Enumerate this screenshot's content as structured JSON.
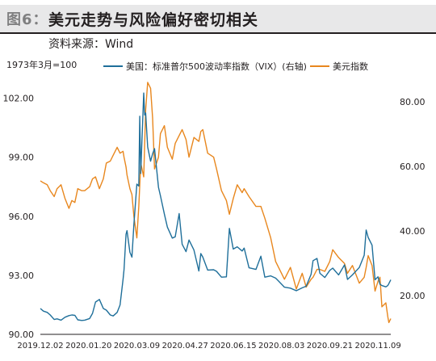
{
  "header": {
    "figure_label": "图6：",
    "title": "美元走势与风险偏好密切相关",
    "source": "资料来源：Wind"
  },
  "chart_data": {
    "type": "line",
    "unit_note": "1973年3月=100",
    "x_ticks": [
      "2019.12.02",
      "2020.01.20",
      "2020.03.09",
      "2020.04.27",
      "2020.06.15",
      "2020.08.03",
      "2020.09.21",
      "2020.11.09"
    ],
    "x_range": [
      "2019-12-02",
      "2020-11-22"
    ],
    "y_left": {
      "ticks": [
        "90.00",
        "93.00",
        "96.00",
        "99.00",
        "102.00"
      ],
      "range": [
        90,
        102.8
      ]
    },
    "y_right": {
      "ticks": [
        "20.00",
        "40.00",
        "60.00",
        "80.00"
      ],
      "range": [
        8,
        86
      ]
    },
    "legend_position": "top",
    "series": [
      {
        "name": "美国：标准普尔500波动率指数（VIX）(右轴)",
        "axis": "right",
        "color": "#1f6f9a",
        "points": [
          [
            "2019-12-02",
            16.0
          ],
          [
            "2019-12-05",
            15.2
          ],
          [
            "2019-12-09",
            14.8
          ],
          [
            "2019-12-12",
            14.0
          ],
          [
            "2019-12-16",
            12.6
          ],
          [
            "2019-12-19",
            12.8
          ],
          [
            "2019-12-23",
            12.4
          ],
          [
            "2019-12-27",
            13.3
          ],
          [
            "2019-12-31",
            13.8
          ],
          [
            "2020-01-03",
            14.0
          ],
          [
            "2020-01-06",
            13.9
          ],
          [
            "2020-01-09",
            12.5
          ],
          [
            "2020-01-13",
            12.3
          ],
          [
            "2020-01-16",
            12.4
          ],
          [
            "2020-01-21",
            12.9
          ],
          [
            "2020-01-24",
            14.5
          ],
          [
            "2020-01-27",
            18.0
          ],
          [
            "2020-01-31",
            18.8
          ],
          [
            "2020-02-04",
            16.0
          ],
          [
            "2020-02-07",
            15.5
          ],
          [
            "2020-02-11",
            14.0
          ],
          [
            "2020-02-14",
            13.7
          ],
          [
            "2020-02-18",
            14.8
          ],
          [
            "2020-02-21",
            17.1
          ],
          [
            "2020-02-24",
            25.0
          ],
          [
            "2020-02-25",
            28.0
          ],
          [
            "2020-02-27",
            39.0
          ],
          [
            "2020-02-28",
            40.1
          ],
          [
            "2020-03-02",
            33.4
          ],
          [
            "2020-03-04",
            31.9
          ],
          [
            "2020-03-06",
            41.9
          ],
          [
            "2020-03-09",
            54.5
          ],
          [
            "2020-03-11",
            53.9
          ],
          [
            "2020-03-12",
            75.5
          ],
          [
            "2020-03-13",
            57.8
          ],
          [
            "2020-03-16",
            82.7
          ],
          [
            "2020-03-17",
            75.9
          ],
          [
            "2020-03-18",
            76.5
          ],
          [
            "2020-03-20",
            66.0
          ],
          [
            "2020-03-23",
            61.6
          ],
          [
            "2020-03-25",
            63.9
          ],
          [
            "2020-03-27",
            65.5
          ],
          [
            "2020-03-31",
            53.5
          ],
          [
            "2020-04-02",
            50.9
          ],
          [
            "2020-04-06",
            45.2
          ],
          [
            "2020-04-09",
            41.2
          ],
          [
            "2020-04-14",
            37.8
          ],
          [
            "2020-04-17",
            38.2
          ],
          [
            "2020-04-21",
            45.4
          ],
          [
            "2020-04-24",
            35.9
          ],
          [
            "2020-04-28",
            33.6
          ],
          [
            "2020-05-01",
            37.2
          ],
          [
            "2020-05-06",
            34.1
          ],
          [
            "2020-05-11",
            27.6
          ],
          [
            "2020-05-13",
            33.0
          ],
          [
            "2020-05-15",
            31.9
          ],
          [
            "2020-05-20",
            27.9
          ],
          [
            "2020-05-26",
            28.0
          ],
          [
            "2020-05-29",
            27.5
          ],
          [
            "2020-06-03",
            25.7
          ],
          [
            "2020-06-08",
            25.8
          ],
          [
            "2020-06-11",
            40.8
          ],
          [
            "2020-06-15",
            34.4
          ],
          [
            "2020-06-19",
            35.1
          ],
          [
            "2020-06-24",
            33.8
          ],
          [
            "2020-06-26",
            34.7
          ],
          [
            "2020-07-01",
            28.6
          ],
          [
            "2020-07-08",
            28.1
          ],
          [
            "2020-07-13",
            32.2
          ],
          [
            "2020-07-17",
            25.7
          ],
          [
            "2020-07-23",
            26.1
          ],
          [
            "2020-07-28",
            25.4
          ],
          [
            "2020-07-31",
            24.5
          ],
          [
            "2020-08-06",
            22.6
          ],
          [
            "2020-08-12",
            22.3
          ],
          [
            "2020-08-18",
            21.5
          ],
          [
            "2020-08-24",
            22.4
          ],
          [
            "2020-08-28",
            22.9
          ],
          [
            "2020-09-02",
            26.6
          ],
          [
            "2020-09-04",
            30.8
          ],
          [
            "2020-09-08",
            31.5
          ],
          [
            "2020-09-11",
            26.9
          ],
          [
            "2020-09-16",
            25.6
          ],
          [
            "2020-09-21",
            27.8
          ],
          [
            "2020-09-24",
            28.5
          ],
          [
            "2020-09-30",
            26.4
          ],
          [
            "2020-10-06",
            29.5
          ],
          [
            "2020-10-09",
            25.0
          ],
          [
            "2020-10-14",
            26.4
          ],
          [
            "2020-10-21",
            28.7
          ],
          [
            "2020-10-26",
            32.5
          ],
          [
            "2020-10-28",
            40.3
          ],
          [
            "2020-10-30",
            38.0
          ],
          [
            "2020-11-03",
            35.6
          ],
          [
            "2020-11-06",
            24.9
          ],
          [
            "2020-11-09",
            25.8
          ],
          [
            "2020-11-11",
            23.5
          ],
          [
            "2020-11-13",
            23.1
          ],
          [
            "2020-11-17",
            22.7
          ],
          [
            "2020-11-19",
            23.1
          ],
          [
            "2020-11-20",
            23.7
          ],
          [
            "2020-11-22",
            24.9
          ]
        ]
      },
      {
        "name": "美元指数",
        "axis": "left",
        "color": "#e8871e",
        "points": [
          [
            "2019-12-02",
            97.8
          ],
          [
            "2019-12-05",
            97.7
          ],
          [
            "2019-12-09",
            97.6
          ],
          [
            "2019-12-12",
            97.3
          ],
          [
            "2019-12-16",
            97.0
          ],
          [
            "2019-12-19",
            97.4
          ],
          [
            "2019-12-23",
            97.6
          ],
          [
            "2019-12-27",
            96.9
          ],
          [
            "2019-12-31",
            96.4
          ],
          [
            "2020-01-03",
            96.8
          ],
          [
            "2020-01-06",
            96.7
          ],
          [
            "2020-01-09",
            97.4
          ],
          [
            "2020-01-13",
            97.3
          ],
          [
            "2020-01-16",
            97.3
          ],
          [
            "2020-01-21",
            97.5
          ],
          [
            "2020-01-24",
            97.9
          ],
          [
            "2020-01-27",
            98.0
          ],
          [
            "2020-01-31",
            97.4
          ],
          [
            "2020-02-04",
            97.9
          ],
          [
            "2020-02-07",
            98.7
          ],
          [
            "2020-02-11",
            98.8
          ],
          [
            "2020-02-14",
            99.1
          ],
          [
            "2020-02-18",
            99.5
          ],
          [
            "2020-02-21",
            99.2
          ],
          [
            "2020-02-24",
            99.3
          ],
          [
            "2020-02-25",
            99.0
          ],
          [
            "2020-02-27",
            98.5
          ],
          [
            "2020-02-28",
            98.1
          ],
          [
            "2020-03-02",
            97.4
          ],
          [
            "2020-03-04",
            97.1
          ],
          [
            "2020-03-06",
            96.0
          ],
          [
            "2020-03-09",
            94.9
          ],
          [
            "2020-03-11",
            96.5
          ],
          [
            "2020-03-12",
            97.6
          ],
          [
            "2020-03-13",
            98.7
          ],
          [
            "2020-03-16",
            98.0
          ],
          [
            "2020-03-17",
            99.7
          ],
          [
            "2020-03-18",
            101.4
          ],
          [
            "2020-03-20",
            102.8
          ],
          [
            "2020-03-23",
            102.5
          ],
          [
            "2020-03-25",
            101.0
          ],
          [
            "2020-03-27",
            98.4
          ],
          [
            "2020-03-31",
            99.0
          ],
          [
            "2020-04-02",
            100.2
          ],
          [
            "2020-04-06",
            100.6
          ],
          [
            "2020-04-09",
            99.5
          ],
          [
            "2020-04-14",
            98.9
          ],
          [
            "2020-04-17",
            99.7
          ],
          [
            "2020-04-21",
            100.1
          ],
          [
            "2020-04-24",
            100.4
          ],
          [
            "2020-04-28",
            99.9
          ],
          [
            "2020-05-01",
            99.0
          ],
          [
            "2020-05-06",
            100.0
          ],
          [
            "2020-05-11",
            99.8
          ],
          [
            "2020-05-13",
            100.3
          ],
          [
            "2020-05-15",
            100.4
          ],
          [
            "2020-05-20",
            99.2
          ],
          [
            "2020-05-26",
            99.0
          ],
          [
            "2020-05-29",
            98.4
          ],
          [
            "2020-06-03",
            97.3
          ],
          [
            "2020-06-08",
            96.8
          ],
          [
            "2020-06-11",
            96.1
          ],
          [
            "2020-06-15",
            96.9
          ],
          [
            "2020-06-19",
            97.6
          ],
          [
            "2020-06-24",
            97.2
          ],
          [
            "2020-06-26",
            97.4
          ],
          [
            "2020-07-01",
            97.0
          ],
          [
            "2020-07-08",
            96.5
          ],
          [
            "2020-07-13",
            96.5
          ],
          [
            "2020-07-17",
            95.9
          ],
          [
            "2020-07-23",
            94.9
          ],
          [
            "2020-07-28",
            93.7
          ],
          [
            "2020-07-31",
            93.4
          ],
          [
            "2020-08-06",
            92.8
          ],
          [
            "2020-08-12",
            93.4
          ],
          [
            "2020-08-18",
            92.3
          ],
          [
            "2020-08-24",
            93.1
          ],
          [
            "2020-08-28",
            92.4
          ],
          [
            "2020-09-02",
            92.8
          ],
          [
            "2020-09-04",
            92.9
          ],
          [
            "2020-09-08",
            93.3
          ],
          [
            "2020-09-11",
            93.3
          ],
          [
            "2020-09-16",
            93.2
          ],
          [
            "2020-09-21",
            93.7
          ],
          [
            "2020-09-24",
            94.3
          ],
          [
            "2020-09-30",
            93.9
          ],
          [
            "2020-10-06",
            93.6
          ],
          [
            "2020-10-09",
            93.1
          ],
          [
            "2020-10-14",
            93.5
          ],
          [
            "2020-10-21",
            92.6
          ],
          [
            "2020-10-26",
            92.9
          ],
          [
            "2020-10-28",
            93.4
          ],
          [
            "2020-10-30",
            94.0
          ],
          [
            "2020-11-03",
            93.5
          ],
          [
            "2020-11-06",
            92.2
          ],
          [
            "2020-11-09",
            92.7
          ],
          [
            "2020-11-11",
            92.9
          ],
          [
            "2020-11-13",
            91.4
          ],
          [
            "2020-11-17",
            91.6
          ],
          [
            "2020-11-19",
            90.9
          ],
          [
            "2020-11-20",
            90.6
          ],
          [
            "2020-11-22",
            90.8
          ]
        ]
      }
    ]
  }
}
